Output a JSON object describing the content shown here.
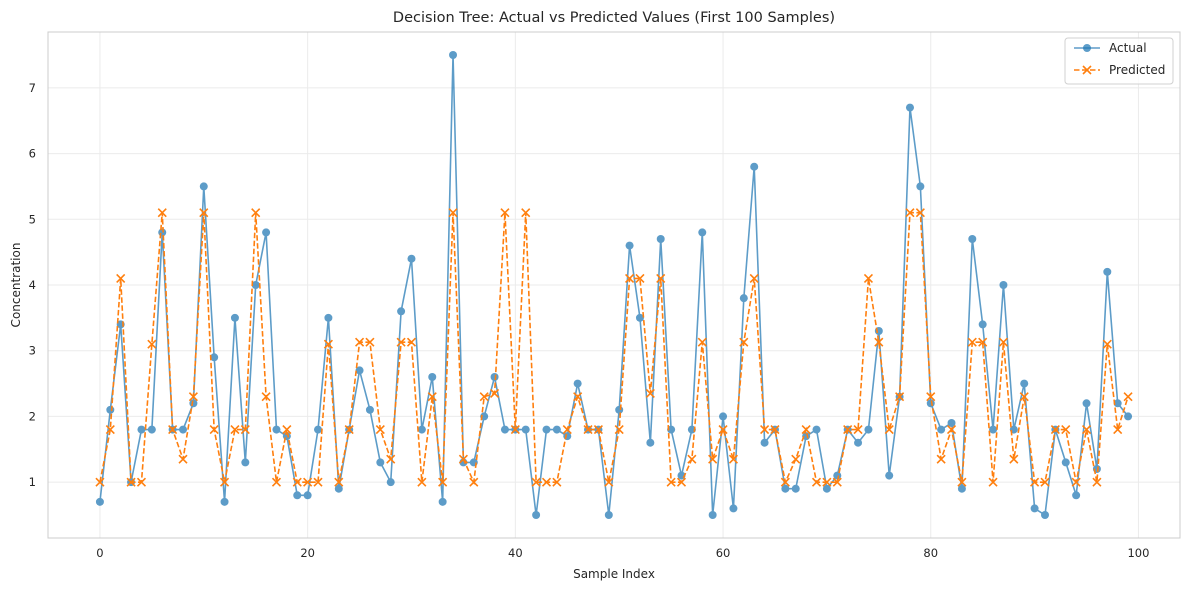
{
  "chart_data": {
    "type": "line",
    "title": "Decision Tree: Actual vs Predicted Values (First 100 Samples)",
    "xlabel": "Sample Index",
    "ylabel": "Concentration",
    "xlim": [
      -5,
      104
    ],
    "ylim": [
      0.15,
      7.85
    ],
    "xticks": [
      0,
      20,
      40,
      60,
      80,
      100
    ],
    "yticks": [
      1,
      2,
      3,
      4,
      5,
      6,
      7
    ],
    "grid": true,
    "legend_position": "top-right",
    "x": [
      0,
      1,
      2,
      3,
      4,
      5,
      6,
      7,
      8,
      9,
      10,
      11,
      12,
      13,
      14,
      15,
      16,
      17,
      18,
      19,
      20,
      21,
      22,
      23,
      24,
      25,
      26,
      27,
      28,
      29,
      30,
      31,
      32,
      33,
      34,
      35,
      36,
      37,
      38,
      39,
      40,
      41,
      42,
      43,
      44,
      45,
      46,
      47,
      48,
      49,
      50,
      51,
      52,
      53,
      54,
      55,
      56,
      57,
      58,
      59,
      60,
      61,
      62,
      63,
      64,
      65,
      66,
      67,
      68,
      69,
      70,
      71,
      72,
      73,
      74,
      75,
      76,
      77,
      78,
      79,
      80,
      81,
      82,
      83,
      84,
      85,
      86,
      87,
      88,
      89,
      90,
      91,
      92,
      93,
      94,
      95,
      96,
      97,
      98,
      99
    ],
    "series": [
      {
        "name": "Actual",
        "color": "#1f77b4",
        "marker": "circle",
        "linestyle": "solid",
        "values": [
          0.7,
          2.1,
          3.4,
          1.0,
          1.8,
          1.8,
          4.8,
          1.8,
          1.8,
          2.2,
          5.5,
          2.9,
          0.7,
          3.5,
          1.3,
          4.0,
          4.8,
          1.8,
          1.7,
          0.8,
          0.8,
          1.8,
          3.5,
          0.9,
          1.8,
          2.7,
          2.1,
          1.3,
          1.0,
          3.6,
          4.4,
          1.8,
          2.6,
          0.7,
          7.5,
          1.3,
          1.3,
          2.0,
          2.6,
          1.8,
          1.8,
          1.8,
          0.5,
          1.8,
          1.8,
          1.7,
          2.5,
          1.8,
          1.8,
          0.5,
          2.1,
          4.6,
          3.5,
          1.6,
          4.7,
          1.8,
          1.1,
          1.8,
          4.8,
          0.5,
          2.0,
          0.6,
          3.8,
          5.8,
          1.6,
          1.8,
          0.9,
          0.9,
          1.7,
          1.8,
          0.9,
          1.1,
          1.8,
          1.6,
          1.8,
          3.3,
          1.1,
          2.3,
          6.7,
          5.5,
          2.2,
          1.8,
          1.9,
          0.9,
          4.7,
          3.4,
          1.8,
          4.0,
          1.8,
          2.5,
          0.6,
          0.5,
          1.8,
          1.3,
          0.8,
          2.2,
          1.2,
          4.2,
          2.2,
          2.0
        ]
      },
      {
        "name": "Predicted",
        "color": "#ff7f0e",
        "marker": "x",
        "linestyle": "dashed",
        "values": [
          1.0,
          1.8,
          4.1,
          1.0,
          1.0,
          3.1,
          5.1,
          1.8,
          1.35,
          2.3,
          5.1,
          1.8,
          1.0,
          1.8,
          1.8,
          5.1,
          2.3,
          1.0,
          1.8,
          1.0,
          1.0,
          1.0,
          3.1,
          1.0,
          1.8,
          3.13,
          3.13,
          1.8,
          1.35,
          3.13,
          3.13,
          1.0,
          2.3,
          1.0,
          5.1,
          1.35,
          1.0,
          2.3,
          2.35,
          5.1,
          1.8,
          5.1,
          1.0,
          1.0,
          1.0,
          1.8,
          2.3,
          1.8,
          1.8,
          1.0,
          1.8,
          4.1,
          4.1,
          2.35,
          4.1,
          1.0,
          1.0,
          1.35,
          3.13,
          1.35,
          1.8,
          1.35,
          3.13,
          4.1,
          1.8,
          1.8,
          1.0,
          1.35,
          1.8,
          1.0,
          1.0,
          1.0,
          1.8,
          1.8,
          4.1,
          3.13,
          1.8,
          2.3,
          5.1,
          5.1,
          2.3,
          1.35,
          1.8,
          1.0,
          3.13,
          3.13,
          1.0,
          3.13,
          1.35,
          2.3,
          1.0,
          1.0,
          1.8,
          1.8,
          1.0,
          1.8,
          1.0,
          3.1,
          1.8,
          2.3
        ]
      }
    ]
  }
}
